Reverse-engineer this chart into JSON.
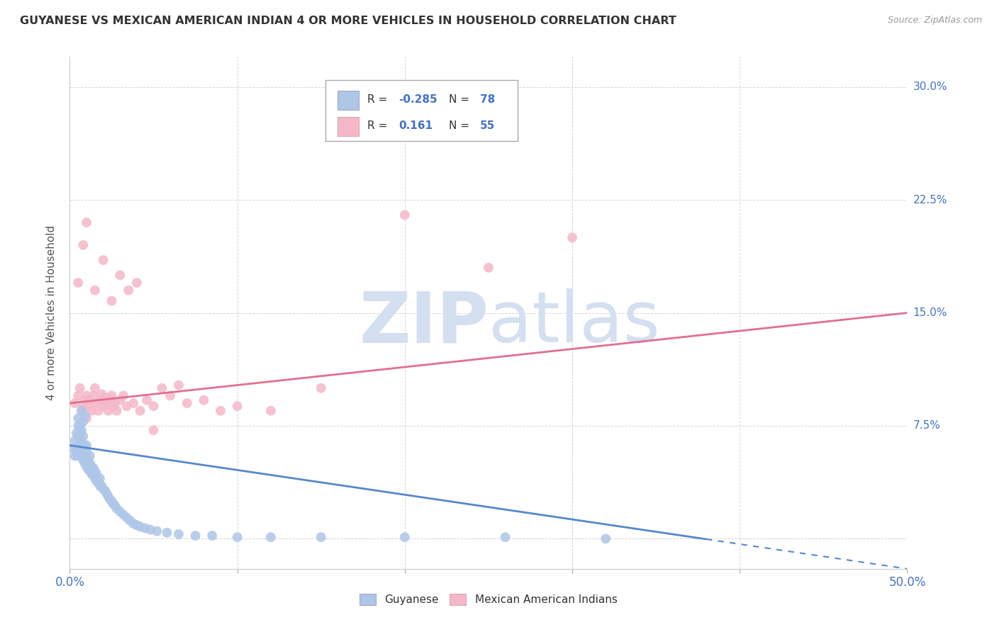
{
  "title": "GUYANESE VS MEXICAN AMERICAN INDIAN 4 OR MORE VEHICLES IN HOUSEHOLD CORRELATION CHART",
  "source": "Source: ZipAtlas.com",
  "ylabel": "4 or more Vehicles in Household",
  "xmin": 0.0,
  "xmax": 0.5,
  "ymin": -0.02,
  "ymax": 0.32,
  "color_blue": "#aec6e8",
  "color_pink": "#f5b8c8",
  "color_blue_line": "#5588cc",
  "color_pink_line": "#e07090",
  "color_blue_text": "#4472c4",
  "watermark_color": "#d4dff0",
  "guyanese_x": [
    0.002,
    0.003,
    0.003,
    0.004,
    0.004,
    0.005,
    0.005,
    0.005,
    0.005,
    0.006,
    0.006,
    0.006,
    0.007,
    0.007,
    0.007,
    0.007,
    0.008,
    0.008,
    0.008,
    0.008,
    0.009,
    0.009,
    0.009,
    0.01,
    0.01,
    0.01,
    0.01,
    0.011,
    0.011,
    0.012,
    0.012,
    0.012,
    0.013,
    0.013,
    0.014,
    0.014,
    0.015,
    0.015,
    0.016,
    0.016,
    0.017,
    0.018,
    0.018,
    0.019,
    0.02,
    0.021,
    0.022,
    0.023,
    0.024,
    0.025,
    0.026,
    0.027,
    0.028,
    0.03,
    0.032,
    0.034,
    0.036,
    0.038,
    0.04,
    0.042,
    0.045,
    0.048,
    0.052,
    0.058,
    0.065,
    0.075,
    0.085,
    0.1,
    0.12,
    0.15,
    0.2,
    0.26,
    0.32,
    0.005,
    0.006,
    0.007,
    0.008,
    0.009
  ],
  "guyanese_y": [
    0.06,
    0.055,
    0.065,
    0.058,
    0.07,
    0.055,
    0.06,
    0.068,
    0.075,
    0.058,
    0.062,
    0.07,
    0.055,
    0.06,
    0.065,
    0.072,
    0.052,
    0.058,
    0.063,
    0.068,
    0.05,
    0.055,
    0.06,
    0.048,
    0.053,
    0.058,
    0.062,
    0.046,
    0.052,
    0.045,
    0.05,
    0.055,
    0.043,
    0.048,
    0.042,
    0.047,
    0.04,
    0.045,
    0.038,
    0.043,
    0.038,
    0.035,
    0.04,
    0.035,
    0.033,
    0.032,
    0.03,
    0.028,
    0.026,
    0.025,
    0.023,
    0.022,
    0.02,
    0.018,
    0.016,
    0.014,
    0.012,
    0.01,
    0.009,
    0.008,
    0.007,
    0.006,
    0.005,
    0.004,
    0.003,
    0.002,
    0.002,
    0.001,
    0.001,
    0.001,
    0.001,
    0.001,
    0.0,
    0.08,
    0.075,
    0.085,
    0.078,
    0.082
  ],
  "mexican_x": [
    0.003,
    0.005,
    0.006,
    0.007,
    0.008,
    0.009,
    0.01,
    0.01,
    0.011,
    0.012,
    0.013,
    0.014,
    0.015,
    0.016,
    0.017,
    0.018,
    0.019,
    0.02,
    0.021,
    0.022,
    0.023,
    0.024,
    0.025,
    0.026,
    0.027,
    0.028,
    0.03,
    0.032,
    0.034,
    0.038,
    0.042,
    0.046,
    0.05,
    0.055,
    0.06,
    0.065,
    0.07,
    0.08,
    0.09,
    0.1,
    0.12,
    0.15,
    0.2,
    0.25,
    0.3,
    0.005,
    0.008,
    0.01,
    0.015,
    0.02,
    0.025,
    0.03,
    0.035,
    0.04,
    0.05
  ],
  "mexican_y": [
    0.09,
    0.095,
    0.1,
    0.085,
    0.088,
    0.092,
    0.08,
    0.095,
    0.088,
    0.092,
    0.085,
    0.095,
    0.1,
    0.09,
    0.085,
    0.092,
    0.096,
    0.088,
    0.094,
    0.09,
    0.085,
    0.092,
    0.095,
    0.088,
    0.09,
    0.085,
    0.092,
    0.095,
    0.088,
    0.09,
    0.085,
    0.092,
    0.088,
    0.1,
    0.095,
    0.102,
    0.09,
    0.092,
    0.085,
    0.088,
    0.085,
    0.1,
    0.215,
    0.18,
    0.2,
    0.17,
    0.195,
    0.21,
    0.165,
    0.185,
    0.158,
    0.175,
    0.165,
    0.17,
    0.072
  ],
  "blue_line_x0": 0.0,
  "blue_line_x1": 0.5,
  "blue_line_y0": 0.062,
  "blue_line_y1": -0.02,
  "blue_line_solid_end": 0.38,
  "pink_line_x0": 0.0,
  "pink_line_x1": 0.5,
  "pink_line_y0": 0.09,
  "pink_line_y1": 0.15
}
